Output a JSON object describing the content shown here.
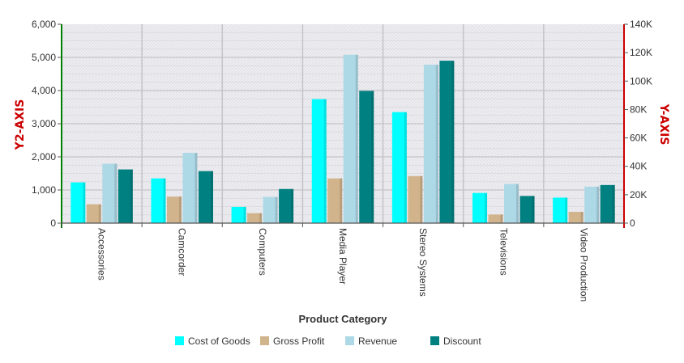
{
  "chart_data": {
    "type": "bar",
    "title": "",
    "xlabel": "Product Category",
    "ylabel": "Y-AXIS",
    "y2label": "Y2-AXIS",
    "categories": [
      "Accessories",
      "Camcorder",
      "Computers",
      "Media Player",
      "Stereo Systems",
      "Televisions",
      "Video Production"
    ],
    "y_axis": {
      "side": "right",
      "lim": [
        0,
        140000
      ],
      "ticks": [
        "0",
        "20K",
        "40K",
        "60K",
        "80K",
        "100K",
        "120K",
        "140K"
      ]
    },
    "y2_axis": {
      "side": "left",
      "lim": [
        0,
        6000
      ],
      "ticks": [
        "0",
        "1,000",
        "2,000",
        "3,000",
        "4,000",
        "5,000",
        "6,000"
      ]
    },
    "grid": true,
    "legend_position": "bottom",
    "series": [
      {
        "name": "Cost of Goods",
        "color": "#00ffff",
        "values": [
          1230,
          1350,
          490,
          3740,
          3350,
          910,
          770
        ]
      },
      {
        "name": "Gross Profit",
        "color": "#d2b48c",
        "values": [
          570,
          800,
          300,
          1350,
          1420,
          260,
          340
        ]
      },
      {
        "name": "Revenue",
        "color": "#add8e6",
        "values": [
          1790,
          2120,
          790,
          5080,
          4780,
          1180,
          1100
        ]
      },
      {
        "name": "Discount",
        "color": "#008080",
        "values": [
          1620,
          1570,
          1030,
          3990,
          4900,
          820,
          1150
        ]
      }
    ]
  }
}
